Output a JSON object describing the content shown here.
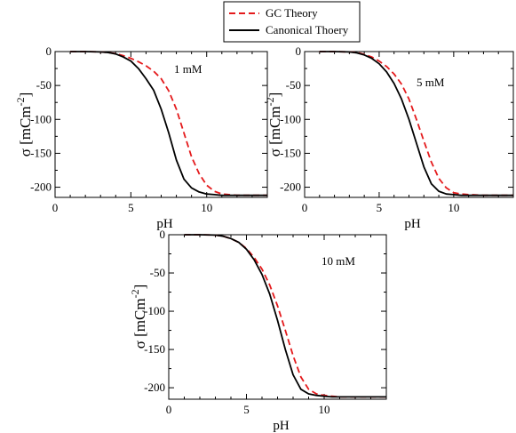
{
  "legend": {
    "items": [
      {
        "label": "GC Theory",
        "color": "#e41a1c",
        "style": "dashed"
      },
      {
        "label": "Canonical Thoery",
        "color": "#000000",
        "style": "solid"
      }
    ]
  },
  "chart_data": [
    {
      "type": "line",
      "annotation": "1 mM",
      "xlabel": "pH",
      "ylabel": "σ [mCm",
      "ylabel_sup": "-2",
      "ylabel_end": "]",
      "xlim": [
        0,
        14
      ],
      "ylim": [
        -215,
        0
      ],
      "xticks": [
        0,
        5,
        10
      ],
      "yticks": [
        0,
        -50,
        -100,
        -150,
        -200
      ],
      "series": [
        {
          "name": "GC Theory",
          "color": "#e41a1c",
          "dashed": true,
          "x": [
            1,
            2,
            3,
            3.5,
            4,
            4.5,
            5,
            5.5,
            6,
            6.5,
            7,
            7.5,
            8,
            8.5,
            9,
            9.5,
            10,
            10.5,
            11,
            12,
            13,
            14
          ],
          "y": [
            0,
            0,
            -0.5,
            -1.5,
            -3,
            -6,
            -10,
            -15,
            -21,
            -29,
            -40,
            -58,
            -85,
            -120,
            -155,
            -180,
            -197,
            -206,
            -210,
            -212,
            -212,
            -212
          ]
        },
        {
          "name": "Canonical Thoery",
          "color": "#000000",
          "dashed": false,
          "x": [
            1,
            2,
            3,
            3.5,
            4,
            4.5,
            5,
            5.5,
            6,
            6.5,
            7,
            7.5,
            8,
            8.5,
            9,
            9.5,
            10,
            10.5,
            11,
            12,
            13,
            14
          ],
          "y": [
            0,
            0,
            -0.5,
            -1.5,
            -3.5,
            -8,
            -14,
            -25,
            -40,
            -57,
            -85,
            -120,
            -160,
            -188,
            -201,
            -207,
            -210,
            -211,
            -212,
            -212,
            -212,
            -212
          ]
        }
      ]
    },
    {
      "type": "line",
      "annotation": "5 mM",
      "xlabel": "pH",
      "ylabel": "σ [mCm",
      "ylabel_sup": "-2",
      "ylabel_end": "]",
      "xlim": [
        0,
        14
      ],
      "ylim": [
        -215,
        0
      ],
      "xticks": [
        0,
        5,
        10
      ],
      "yticks": [
        0,
        -50,
        -100,
        -150,
        -200
      ],
      "series": [
        {
          "name": "GC Theory",
          "color": "#e41a1c",
          "dashed": true,
          "x": [
            1,
            2,
            3,
            3.5,
            4,
            4.5,
            5,
            5.5,
            6,
            6.5,
            7,
            7.5,
            8,
            8.5,
            9,
            9.5,
            10,
            10.5,
            11,
            12,
            13,
            14
          ],
          "y": [
            0,
            0,
            -0.5,
            -1.5,
            -4,
            -8,
            -14,
            -22,
            -33,
            -48,
            -70,
            -100,
            -132,
            -163,
            -187,
            -201,
            -208,
            -210,
            -211,
            -212,
            -212,
            -212
          ]
        },
        {
          "name": "Canonical Thoery",
          "color": "#000000",
          "dashed": false,
          "x": [
            1,
            2,
            3,
            3.5,
            4,
            4.5,
            5,
            5.5,
            6,
            6.5,
            7,
            7.5,
            8,
            8.5,
            9,
            9.5,
            10,
            10.5,
            11,
            12,
            13,
            14
          ],
          "y": [
            0,
            0,
            -0.5,
            -2,
            -5,
            -10,
            -18,
            -30,
            -47,
            -70,
            -100,
            -135,
            -170,
            -195,
            -206,
            -210,
            -211,
            -212,
            -212,
            -212,
            -212,
            -212
          ]
        }
      ]
    },
    {
      "type": "line",
      "annotation": "10 mM",
      "xlabel": "pH",
      "ylabel": "σ [mCm",
      "ylabel_sup": "-2",
      "ylabel_end": "]",
      "xlim": [
        0,
        14
      ],
      "ylim": [
        -215,
        0
      ],
      "xticks": [
        0,
        5,
        10
      ],
      "yticks": [
        0,
        -50,
        -100,
        -150,
        -200
      ],
      "series": [
        {
          "name": "GC Theory",
          "color": "#e41a1c",
          "dashed": true,
          "x": [
            1,
            2,
            3,
            3.5,
            4,
            4.5,
            5,
            5.5,
            6,
            6.5,
            7,
            7.5,
            8,
            8.5,
            9,
            9.5,
            10,
            10.5,
            11,
            12,
            13,
            14
          ],
          "y": [
            0,
            0,
            -0.5,
            -2,
            -5,
            -10,
            -18,
            -30,
            -45,
            -66,
            -93,
            -125,
            -158,
            -186,
            -202,
            -208,
            -210,
            -211,
            -212,
            -212,
            -212,
            -212
          ]
        },
        {
          "name": "Canonical Thoery",
          "color": "#000000",
          "dashed": false,
          "x": [
            1,
            2,
            3,
            3.5,
            4,
            4.5,
            5,
            5.5,
            6,
            6.5,
            7,
            7.5,
            8,
            8.5,
            9,
            9.5,
            10,
            10.5,
            11,
            12,
            13,
            14
          ],
          "y": [
            0,
            0,
            -0.5,
            -2,
            -5,
            -10,
            -19,
            -33,
            -52,
            -78,
            -112,
            -150,
            -183,
            -202,
            -208,
            -210,
            -211,
            -212,
            -212,
            -212,
            -212,
            -212
          ]
        }
      ]
    }
  ]
}
